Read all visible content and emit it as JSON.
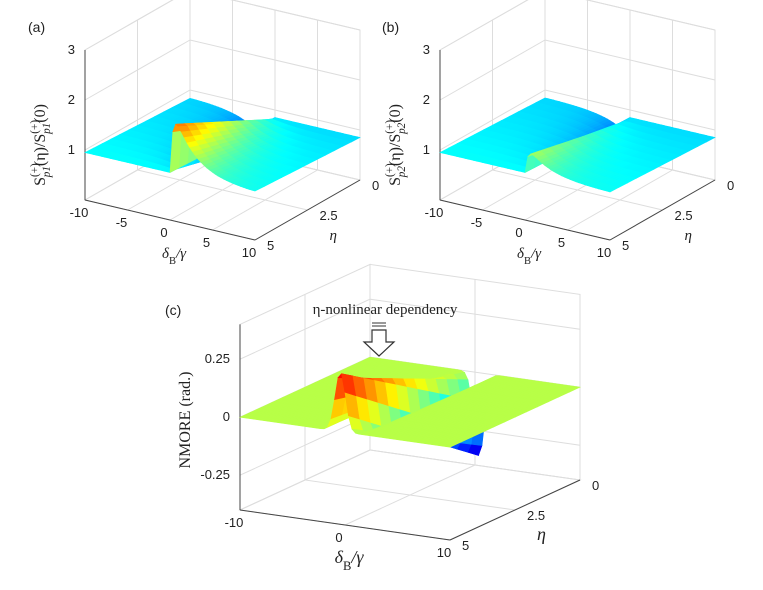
{
  "chart_data": [
    {
      "type": "surface",
      "panel_label": "(a)",
      "xlabel": [
        "δ",
        "B",
        "/γ"
      ],
      "ylabel": "η",
      "zlabel": [
        "S",
        "(+)",
        "p1",
        "(η)/S",
        "(+)",
        "p1",
        "(0)"
      ],
      "xlim": [
        -10,
        10
      ],
      "xticks": [
        -10,
        -5,
        0,
        5,
        10
      ],
      "ylim": [
        0,
        5
      ],
      "yticks": [
        0,
        2.5,
        5
      ],
      "zlim": [
        0,
        3
      ],
      "zticks": [
        1,
        2,
        3
      ],
      "grid": true
    },
    {
      "type": "surface",
      "panel_label": "(b)",
      "xlabel": [
        "δ",
        "B",
        "/γ"
      ],
      "ylabel": "η",
      "zlabel": [
        "S",
        "(+)",
        "p2",
        "(η)/S",
        "(+)",
        "p2",
        "(0)"
      ],
      "xlim": [
        -10,
        10
      ],
      "xticks": [
        -10,
        -5,
        0,
        5,
        10
      ],
      "ylim": [
        0,
        5
      ],
      "yticks": [
        0,
        2.5,
        5
      ],
      "zlim": [
        0,
        3
      ],
      "zticks": [
        1,
        2,
        3
      ],
      "grid": true
    },
    {
      "type": "surface",
      "panel_label": "(c)",
      "xlabel": [
        "δ",
        "B",
        "/γ"
      ],
      "ylabel": "η",
      "zlabel": [
        "NMORE (rad.)"
      ],
      "annotation": "η-nonlinear dependency",
      "xlim": [
        -10,
        10
      ],
      "xticks": [
        -10,
        0,
        10
      ],
      "ylim": [
        0,
        5
      ],
      "yticks": [
        0,
        2.5,
        5
      ],
      "zlim": [
        -0.4,
        0.4
      ],
      "zticks": [
        -0.25,
        0,
        0.25
      ],
      "grid": true
    }
  ]
}
